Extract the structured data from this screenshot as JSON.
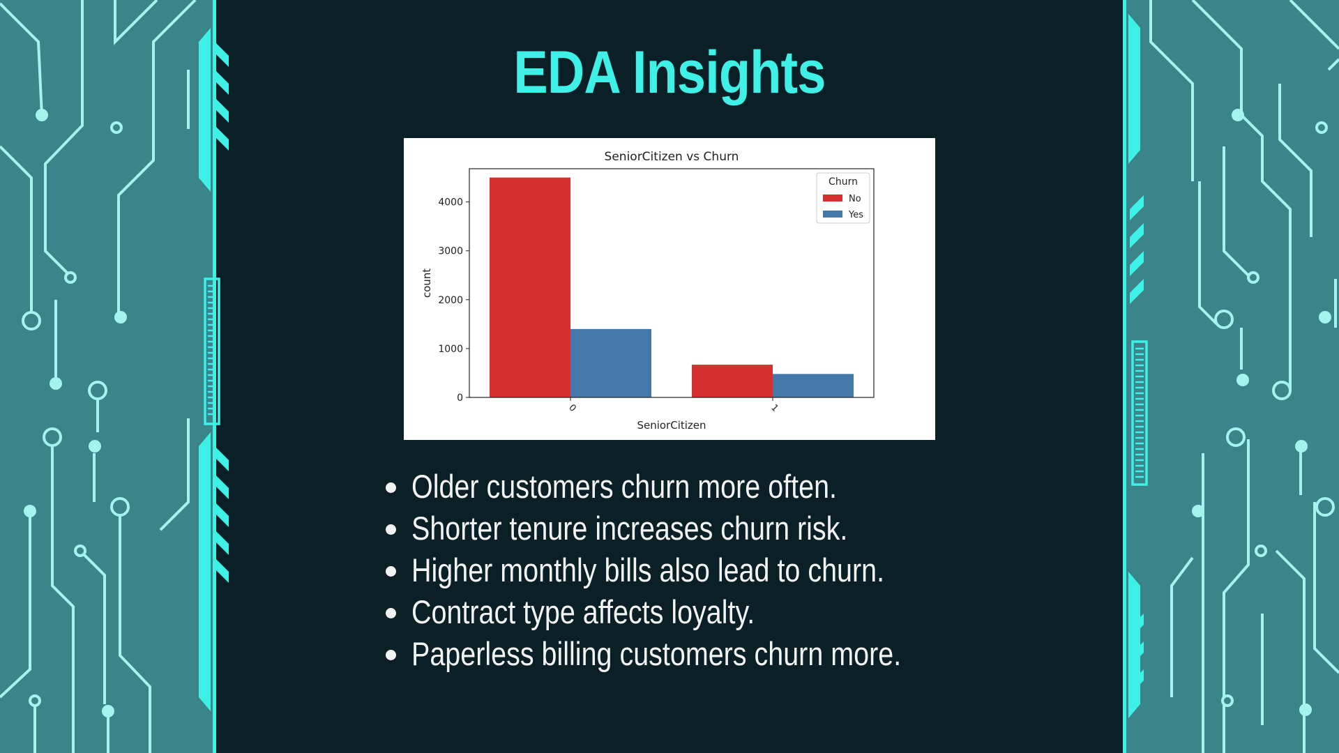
{
  "slide": {
    "title": "EDA Insights"
  },
  "theme": {
    "background": "#0a1f26",
    "panel": "#3a8589",
    "accent": "#3ff0e6",
    "circuit": "#a5f3ef",
    "no_color": "#d62f2f",
    "yes_color": "#4478a8"
  },
  "chart_data": {
    "type": "bar",
    "title": "SeniorCitizen vs Churn",
    "xlabel": "SeniorCitizen",
    "ylabel": "count",
    "categories": [
      "0",
      "1"
    ],
    "series": [
      {
        "name": "No",
        "values": [
          4500,
          670
        ]
      },
      {
        "name": "Yes",
        "values": [
          1400,
          480
        ]
      }
    ],
    "ylim": [
      0,
      4680
    ],
    "yticks": [
      0,
      1000,
      2000,
      3000,
      4000
    ],
    "legend": {
      "title": "Churn",
      "position": "top-right"
    },
    "grid": false
  },
  "bullets": [
    "Older customers churn more often.",
    " Shorter tenure increases churn risk.",
    " Higher monthly bills also lead to churn.",
    " Contract type affects loyalty.",
    " Paperless billing customers churn more."
  ]
}
